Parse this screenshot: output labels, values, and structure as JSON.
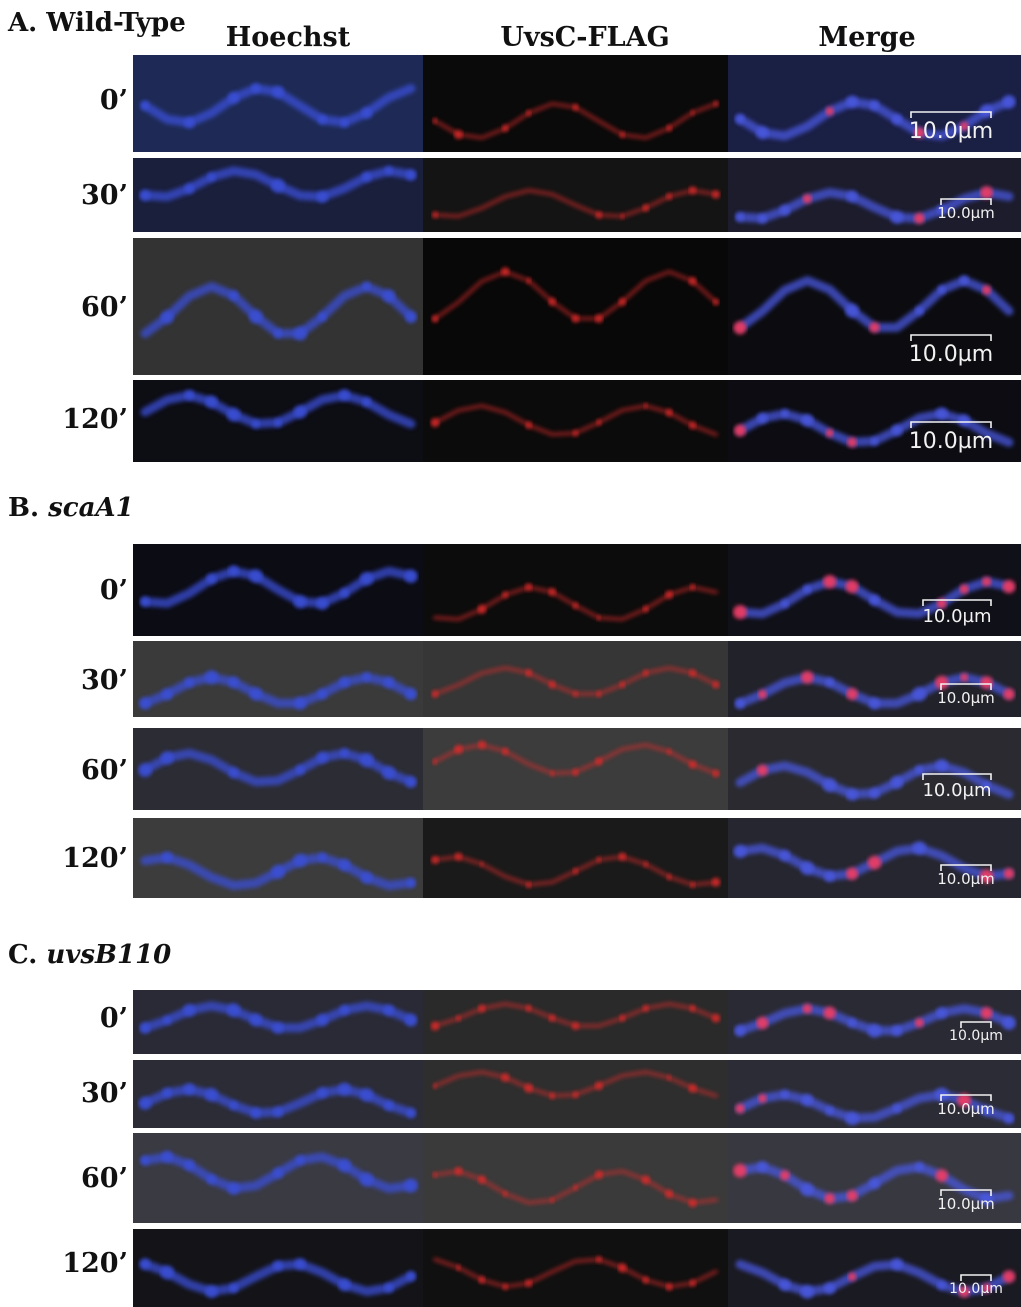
{
  "columns": [
    "Hoechst",
    "UvsC-FLAG",
    "Merge"
  ],
  "scale_bar_label": "10.0µm",
  "sections": [
    {
      "prefix": "A.",
      "name": "Wild-Type",
      "italic": false,
      "rows": [
        {
          "time": "0’",
          "bg": [
            "#1e2a55",
            "#0a0a0a",
            "#1a1f44"
          ]
        },
        {
          "time": "30’",
          "bg": [
            "#1a1f3c",
            "#141414",
            "#1c1c2c"
          ]
        },
        {
          "time": "60’",
          "bg": [
            "#333333",
            "#080808",
            "#0c0c10"
          ]
        },
        {
          "time": "120’",
          "bg": [
            "#0d0d14",
            "#0b0b0b",
            "#0c0c12"
          ]
        }
      ]
    },
    {
      "prefix": "B.",
      "name": "scaA1",
      "italic": true,
      "rows": [
        {
          "time": "0’",
          "bg": [
            "#0c0c14",
            "#0c0c0c",
            "#101018"
          ]
        },
        {
          "time": "30’",
          "bg": [
            "#3a3a3a",
            "#363636",
            "#22222a"
          ]
        },
        {
          "time": "60’",
          "bg": [
            "#2c2c34",
            "#3c3c3c",
            "#2a2a30"
          ]
        },
        {
          "time": "120’",
          "bg": [
            "#3c3c3c",
            "#1a1a1a",
            "#262630"
          ]
        }
      ]
    },
    {
      "prefix": "C.",
      "name": "uvsB110",
      "italic": true,
      "rows": [
        {
          "time": "0’",
          "bg": [
            "#2a2a36",
            "#2a2a2a",
            "#2a2a34"
          ]
        },
        {
          "time": "30’",
          "bg": [
            "#2c2c36",
            "#2e2e2e",
            "#2c2c36"
          ]
        },
        {
          "time": "60’",
          "bg": [
            "#3a3a42",
            "#3a3a3a",
            "#383840"
          ]
        },
        {
          "time": "120’",
          "bg": [
            "#141418",
            "#101010",
            "#1a1a22"
          ]
        }
      ]
    }
  ],
  "colors": {
    "hoechst": "#3a4fd8",
    "uvsc": "#e02a2a",
    "merge_blue": "#4a58e0",
    "merge_red": "#ff3a5a"
  }
}
